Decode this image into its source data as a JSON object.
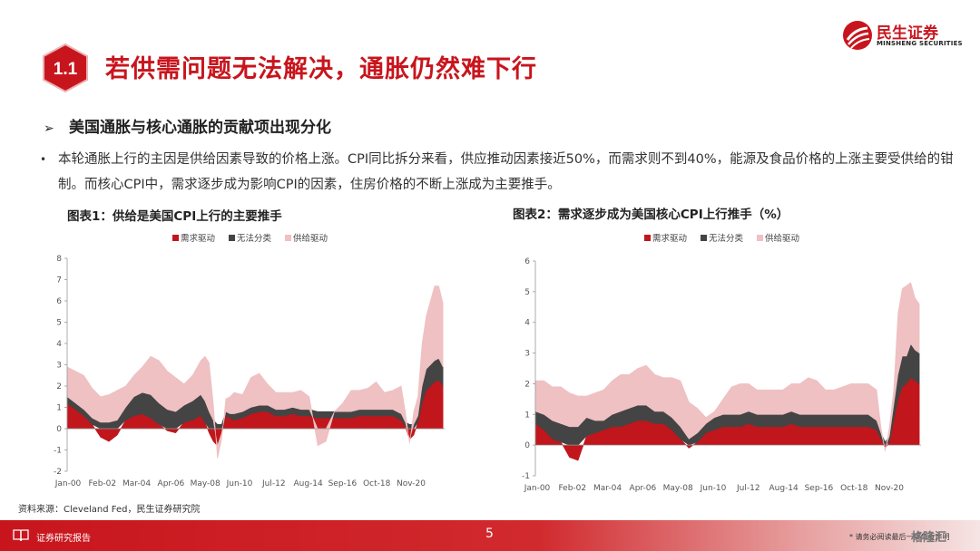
{
  "header": {
    "section_number": "1.1",
    "title": "若供需问题无法解决，通胀仍然难下行",
    "logo_cn": "民生证券",
    "logo_en": "MINSHENG SECURITIES"
  },
  "subheading": "美国通胀与核心通胀的贡献项出现分化",
  "bullet": "本轮通胀上行的主因是供给因素导致的价格上涨。CPI同比拆分来看，供应推动因素接近50%，而需求则不到40%，能源及食品价格的上涨主要受供给的钳制。而核心CPI中，需求逐步成为影响CPI的因素，住房价格的不断上涨成为主要推手。",
  "source": "资料来源：Cleveland Fed，民生证券研究院",
  "footer": {
    "report": "证券研究报告",
    "page": "5",
    "disclaimer": "* 请务必阅读最后一页免责声明",
    "watermark": "格隆汇"
  },
  "colors": {
    "brand": "#c8151d",
    "demand": "#c0161c",
    "ambiguous": "#444444",
    "supply": "#efc1c2"
  },
  "chart_data": [
    {
      "type": "area",
      "title": "图表1：供给是美国CPI上行的主要推手",
      "stacked": true,
      "legend": [
        "需求驱动",
        "无法分类",
        "供给驱动"
      ],
      "legend_position": "top",
      "ylim": [
        -2,
        8
      ],
      "yticks": [
        -2,
        -1,
        0,
        1,
        2,
        3,
        4,
        5,
        6,
        7,
        8
      ],
      "xticks": [
        "Jan-00",
        "Feb-02",
        "Mar-04",
        "Apr-06",
        "May-08",
        "Jun-10",
        "Jul-12",
        "Aug-14",
        "Sep-16",
        "Oct-18",
        "Nov-20"
      ],
      "x": [
        2000.0,
        2000.5,
        2001.0,
        2001.5,
        2002.0,
        2002.5,
        2003.0,
        2003.5,
        2004.0,
        2004.5,
        2005.0,
        2005.5,
        2006.0,
        2006.5,
        2007.0,
        2007.5,
        2008.0,
        2008.25,
        2008.5,
        2008.75,
        2009.0,
        2009.25,
        2009.5,
        2009.75,
        2010.0,
        2010.5,
        2011.0,
        2011.5,
        2012.0,
        2012.5,
        2013.0,
        2013.5,
        2014.0,
        2014.5,
        2015.0,
        2015.5,
        2016.0,
        2016.5,
        2017.0,
        2017.5,
        2018.0,
        2018.5,
        2019.0,
        2019.5,
        2020.0,
        2020.25,
        2020.5,
        2020.75,
        2021.0,
        2021.25,
        2021.5,
        2021.75,
        2022.0,
        2022.25,
        2022.5
      ],
      "series": [
        {
          "name": "需求驱动",
          "values": [
            1.2,
            0.9,
            0.6,
            0.2,
            -0.4,
            -0.6,
            -0.3,
            0.4,
            0.6,
            0.7,
            0.5,
            0.2,
            -0.1,
            -0.2,
            0.3,
            0.4,
            0.6,
            0.3,
            -0.2,
            -0.6,
            -0.8,
            -0.2,
            0.6,
            0.5,
            0.4,
            0.5,
            0.7,
            0.8,
            0.8,
            0.6,
            0.6,
            0.7,
            0.6,
            0.6,
            0.5,
            0.5,
            0.5,
            0.5,
            0.5,
            0.6,
            0.6,
            0.6,
            0.6,
            0.6,
            0.4,
            0.1,
            -0.5,
            -0.3,
            0.3,
            1.2,
            1.8,
            2.0,
            2.2,
            2.3,
            2.0
          ]
        },
        {
          "name": "无法分类",
          "values": [
            0.3,
            0.3,
            0.3,
            0.3,
            0.3,
            0.3,
            0.4,
            0.6,
            0.9,
            1.0,
            1.1,
            1.0,
            0.9,
            0.8,
            0.8,
            0.9,
            1.0,
            1.0,
            0.8,
            0.4,
            0.2,
            0.2,
            0.2,
            0.2,
            0.3,
            0.3,
            0.3,
            0.3,
            0.3,
            0.3,
            0.3,
            0.3,
            0.3,
            0.3,
            0.3,
            0.3,
            0.3,
            0.3,
            0.3,
            0.3,
            0.3,
            0.3,
            0.3,
            0.3,
            0.3,
            0.2,
            0.2,
            0.2,
            0.3,
            0.8,
            1.0,
            1.0,
            1.0,
            1.0,
            0.9
          ]
        },
        {
          "name": "供给驱动",
          "values": [
            1.4,
            1.5,
            1.6,
            1.4,
            1.2,
            1.3,
            1.4,
            1.0,
            1.0,
            1.2,
            1.8,
            2.0,
            1.8,
            1.6,
            1.0,
            1.2,
            1.6,
            2.1,
            2.3,
            0.8,
            -0.6,
            -0.3,
            0.6,
            0.8,
            1.0,
            0.8,
            1.4,
            1.5,
            1.0,
            0.8,
            0.8,
            0.7,
            0.9,
            0.6,
            -0.8,
            -0.6,
            0.0,
            0.4,
            1.0,
            0.9,
            1.0,
            1.3,
            0.8,
            0.9,
            1.3,
            0.5,
            -0.2,
            0.6,
            0.9,
            2.0,
            2.5,
            3.0,
            3.5,
            3.4,
            3.0
          ]
        }
      ]
    },
    {
      "type": "area",
      "title": "图表2：需求逐步成为美国核心CPI上行推手（%）",
      "stacked": true,
      "legend": [
        "需求驱动",
        "无法分类",
        "供给驱动"
      ],
      "legend_position": "top",
      "ylim": [
        -1,
        6
      ],
      "yticks": [
        -1,
        0,
        1,
        2,
        3,
        4,
        5,
        6
      ],
      "xticks": [
        "Jan-00",
        "Feb-02",
        "Mar-04",
        "Apr-06",
        "May-08",
        "Jun-10",
        "Jul-12",
        "Aug-14",
        "Sep-16",
        "Oct-18",
        "Nov-20"
      ],
      "x": [
        2000.0,
        2000.5,
        2001.0,
        2001.5,
        2002.0,
        2002.5,
        2003.0,
        2003.5,
        2004.0,
        2004.5,
        2005.0,
        2005.5,
        2006.0,
        2006.5,
        2007.0,
        2007.5,
        2008.0,
        2008.5,
        2009.0,
        2009.5,
        2010.0,
        2010.5,
        2011.0,
        2011.5,
        2012.0,
        2012.5,
        2013.0,
        2013.5,
        2014.0,
        2014.5,
        2015.0,
        2015.5,
        2016.0,
        2016.5,
        2017.0,
        2017.5,
        2018.0,
        2018.5,
        2019.0,
        2019.5,
        2020.0,
        2020.25,
        2020.5,
        2020.75,
        2021.0,
        2021.25,
        2021.5,
        2021.75,
        2022.0,
        2022.25,
        2022.5
      ],
      "series": [
        {
          "name": "需求驱动",
          "values": [
            0.7,
            0.5,
            0.2,
            0.1,
            -0.4,
            -0.5,
            0.3,
            0.4,
            0.5,
            0.6,
            0.6,
            0.7,
            0.8,
            0.8,
            0.7,
            0.7,
            0.5,
            0.2,
            -0.1,
            0.1,
            0.4,
            0.5,
            0.6,
            0.6,
            0.6,
            0.7,
            0.6,
            0.6,
            0.6,
            0.6,
            0.7,
            0.6,
            0.6,
            0.6,
            0.6,
            0.6,
            0.6,
            0.6,
            0.6,
            0.6,
            0.5,
            0.2,
            -0.1,
            0.1,
            0.8,
            1.5,
            1.9,
            2.0,
            2.2,
            2.1,
            2.0
          ]
        },
        {
          "name": "无法分类",
          "values": [
            0.4,
            0.5,
            0.6,
            0.6,
            0.6,
            0.6,
            0.6,
            0.4,
            0.3,
            0.4,
            0.5,
            0.5,
            0.5,
            0.5,
            0.4,
            0.4,
            0.4,
            0.4,
            0.2,
            0.3,
            0.3,
            0.4,
            0.4,
            0.4,
            0.4,
            0.4,
            0.4,
            0.4,
            0.4,
            0.4,
            0.4,
            0.4,
            0.4,
            0.4,
            0.4,
            0.4,
            0.4,
            0.4,
            0.4,
            0.4,
            0.3,
            0.2,
            0.1,
            0.2,
            0.5,
            0.8,
            1.0,
            0.9,
            1.1,
            1.0,
            1.0
          ]
        },
        {
          "name": "供给驱动",
          "values": [
            1.0,
            1.1,
            1.1,
            1.2,
            1.1,
            1.0,
            0.7,
            0.9,
            1.0,
            1.1,
            1.2,
            1.1,
            1.2,
            1.3,
            1.2,
            1.1,
            1.3,
            1.5,
            1.2,
            0.8,
            0.2,
            0.2,
            0.5,
            0.9,
            1.0,
            0.9,
            0.8,
            0.8,
            0.8,
            0.8,
            0.9,
            1.0,
            1.2,
            1.1,
            0.8,
            0.8,
            0.9,
            1.0,
            1.0,
            1.0,
            1.0,
            0.2,
            -0.1,
            0.3,
            0.5,
            2.0,
            2.2,
            2.3,
            2.0,
            1.7,
            1.6
          ]
        }
      ]
    }
  ]
}
